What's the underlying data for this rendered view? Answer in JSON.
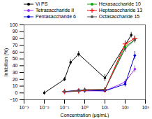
{
  "chart_data": {
    "type": "line",
    "xlabel": "Concentration (μg/mL)",
    "ylabel": "Inhibition (%)",
    "log": "x",
    "xlim": [
      0.001,
      1000
    ],
    "xticks": [
      {
        "value": 0.001,
        "label": "10⁻³"
      },
      {
        "value": 0.01,
        "label": "10⁻²"
      },
      {
        "value": 0.1,
        "label": "10⁻¹"
      },
      {
        "value": 1,
        "label": "10⁰"
      },
      {
        "value": 10,
        "label": "10¹"
      },
      {
        "value": 100,
        "label": "10²"
      },
      {
        "value": 1000,
        "label": "10³"
      }
    ],
    "ylim": [
      -10,
      100
    ],
    "yticks": [
      -10,
      0,
      10,
      20,
      30,
      40,
      50,
      60,
      70,
      80,
      90,
      100
    ],
    "grid": false,
    "legend": "upper left",
    "series": [
      {
        "name": "Vi PS",
        "color": "#000000",
        "marker": "circle",
        "line_style": "solid",
        "x": [
          0.01,
          0.1,
          0.2,
          0.5,
          10,
          200
        ],
        "values": [
          0,
          20,
          45,
          57,
          22,
          85
        ],
        "yerr": [
          3,
          3,
          4,
          4,
          5,
          4
        ]
      },
      {
        "name": "Tetrasaccharide II",
        "color": "#9b30ff",
        "marker": "circle",
        "line_style": "solid",
        "x": [
          0.1,
          0.5,
          1,
          10,
          100,
          300
        ],
        "values": [
          1,
          3,
          3,
          3,
          16,
          35
        ],
        "yerr": [
          2,
          2,
          2,
          2,
          4,
          5
        ]
      },
      {
        "name": "Pentasaccharide 6",
        "color": "#0000cc",
        "marker": "circle",
        "line_style": "solid",
        "x": [
          0.1,
          0.5,
          1,
          10,
          100,
          300
        ],
        "values": [
          2,
          4,
          4,
          3,
          13,
          55
        ],
        "yerr": [
          2,
          2,
          2,
          2,
          4,
          6
        ]
      },
      {
        "name": "Hexasaccharide 10",
        "color": "#00aa00",
        "marker": "circle",
        "line_style": "solid",
        "x": [
          0.1,
          0.5,
          1,
          10,
          100,
          300
        ],
        "values": [
          2,
          3,
          4,
          5,
          68,
          78
        ],
        "yerr": [
          2,
          2,
          2,
          3,
          5,
          4
        ]
      },
      {
        "name": "Heptasaccharide 13",
        "color": "#ff0000",
        "marker": "plus",
        "line_style": "solid",
        "x": [
          0.1,
          0.5,
          1,
          10,
          100,
          300
        ],
        "values": [
          2,
          3,
          4,
          5,
          72,
          80
        ],
        "yerr": [
          2,
          2,
          2,
          3,
          5,
          4
        ]
      },
      {
        "name": "Octasaccharide 15",
        "color": "#555555",
        "marker": "circle",
        "line_style": "solid",
        "x": [
          0.1,
          0.5,
          1,
          10,
          100,
          300
        ],
        "values": [
          2,
          3,
          5,
          5,
          65,
          78
        ],
        "yerr": [
          2,
          2,
          2,
          3,
          5,
          5
        ]
      }
    ]
  }
}
